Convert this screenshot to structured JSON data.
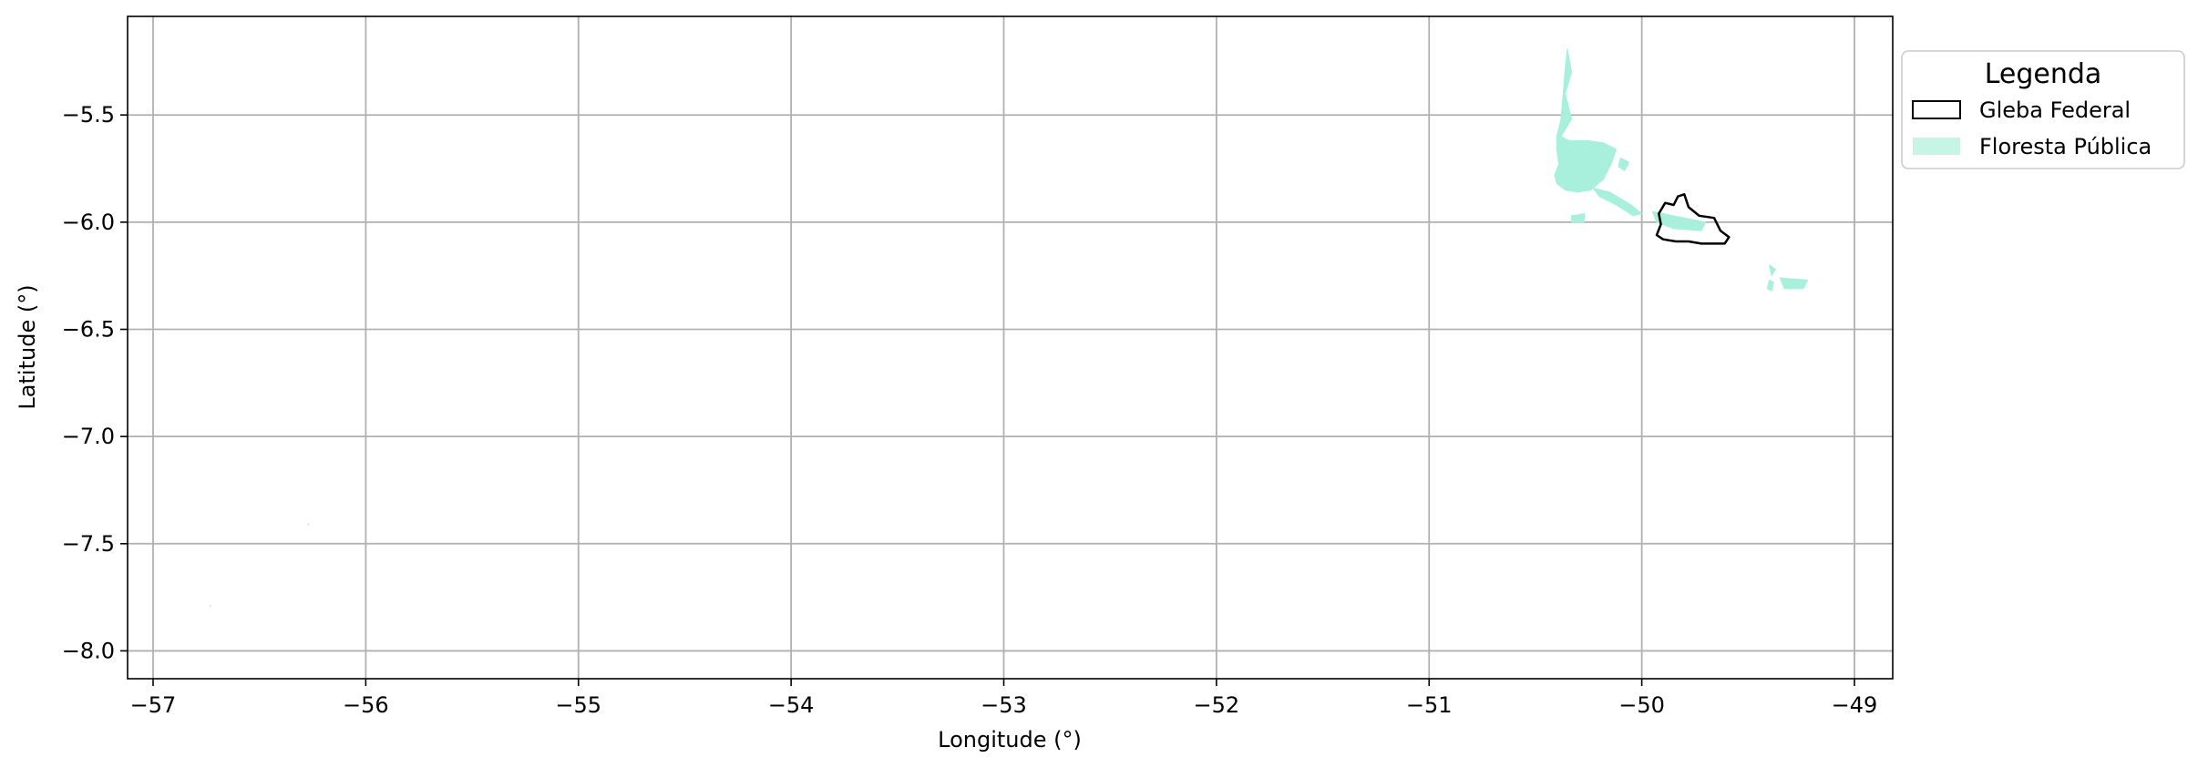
{
  "chart_data": {
    "type": "map",
    "xlabel": "Longitude (°)",
    "ylabel": "Latitude (°)",
    "xlim": [
      -57.12,
      -48.82
    ],
    "ylim": [
      -8.13,
      -5.04
    ],
    "xticks": [
      -57,
      -56,
      -55,
      -54,
      -53,
      -52,
      -51,
      -50,
      -49
    ],
    "xtick_labels": [
      "−57",
      "−56",
      "−55",
      "−54",
      "−53",
      "−52",
      "−51",
      "−50",
      "−49"
    ],
    "yticks": [
      -5.5,
      -6.0,
      -6.5,
      -7.0,
      -7.5,
      -8.0
    ],
    "ytick_labels": [
      "−5.5",
      "−6.0",
      "−6.5",
      "−7.0",
      "−7.5",
      "−8.0"
    ],
    "grid": true,
    "legend": {
      "title": "Legenda",
      "placement": "outside-upper-right",
      "items": [
        {
          "label": "Gleba Federal",
          "style": "outline",
          "edge_color": "#000000"
        },
        {
          "label": "Floresta Pública",
          "style": "fill",
          "fill_color": "#c6f5e6"
        }
      ]
    },
    "layers": [
      {
        "name": "Floresta Pública",
        "fill_color": "#a8f0dc",
        "polygons": [
          [
            [
              -50.35,
              -5.19
            ],
            [
              -50.33,
              -5.3
            ],
            [
              -50.36,
              -5.4
            ],
            [
              -50.33,
              -5.52
            ],
            [
              -50.38,
              -5.6
            ],
            [
              -50.34,
              -5.62
            ],
            [
              -50.25,
              -5.62
            ],
            [
              -50.18,
              -5.63
            ],
            [
              -50.12,
              -5.66
            ],
            [
              -50.14,
              -5.72
            ],
            [
              -50.18,
              -5.8
            ],
            [
              -50.24,
              -5.85
            ],
            [
              -50.3,
              -5.86
            ],
            [
              -50.36,
              -5.85
            ],
            [
              -50.4,
              -5.82
            ],
            [
              -50.41,
              -5.78
            ],
            [
              -50.39,
              -5.73
            ],
            [
              -50.4,
              -5.66
            ],
            [
              -50.4,
              -5.6
            ],
            [
              -50.38,
              -5.52
            ],
            [
              -50.37,
              -5.4
            ],
            [
              -50.36,
              -5.28
            ]
          ],
          [
            [
              -50.23,
              -5.84
            ],
            [
              -50.15,
              -5.86
            ],
            [
              -50.05,
              -5.92
            ],
            [
              -50.0,
              -5.96
            ],
            [
              -50.04,
              -5.97
            ],
            [
              -50.12,
              -5.92
            ],
            [
              -50.2,
              -5.88
            ]
          ],
          [
            [
              -50.33,
              -5.97
            ],
            [
              -50.27,
              -5.96
            ],
            [
              -50.27,
              -6.0
            ],
            [
              -50.33,
              -6.0
            ]
          ],
          [
            [
              -49.95,
              -5.95
            ],
            [
              -49.8,
              -5.98
            ],
            [
              -49.7,
              -6.0
            ],
            [
              -49.72,
              -6.04
            ],
            [
              -49.85,
              -6.03
            ],
            [
              -49.93,
              -6.0
            ]
          ],
          [
            [
              -50.1,
              -5.7
            ],
            [
              -50.06,
              -5.72
            ],
            [
              -50.08,
              -5.76
            ],
            [
              -50.11,
              -5.74
            ]
          ],
          [
            [
              -49.4,
              -6.2
            ],
            [
              -49.37,
              -6.22
            ],
            [
              -49.39,
              -6.25
            ]
          ],
          [
            [
              -49.35,
              -6.26
            ],
            [
              -49.22,
              -6.27
            ],
            [
              -49.24,
              -6.31
            ],
            [
              -49.33,
              -6.31
            ]
          ],
          [
            [
              -49.4,
              -6.27
            ],
            [
              -49.38,
              -6.28
            ],
            [
              -49.39,
              -6.32
            ],
            [
              -49.41,
              -6.31
            ]
          ]
        ]
      },
      {
        "name": "Gleba Federal",
        "edge_color": "#000000",
        "polygons": [
          [
            [
              -49.89,
              -5.91
            ],
            [
              -49.85,
              -5.92
            ],
            [
              -49.83,
              -5.88
            ],
            [
              -49.8,
              -5.87
            ],
            [
              -49.78,
              -5.93
            ],
            [
              -49.73,
              -5.97
            ],
            [
              -49.66,
              -5.98
            ],
            [
              -49.63,
              -6.04
            ],
            [
              -49.59,
              -6.07
            ],
            [
              -49.61,
              -6.1
            ],
            [
              -49.67,
              -6.1
            ],
            [
              -49.72,
              -6.1
            ],
            [
              -49.78,
              -6.09
            ],
            [
              -49.84,
              -6.09
            ],
            [
              -49.9,
              -6.08
            ],
            [
              -49.93,
              -6.06
            ],
            [
              -49.91,
              -6.01
            ],
            [
              -49.92,
              -5.96
            ]
          ]
        ]
      }
    ],
    "specks": [
      {
        "name": "Floresta Pública",
        "points": [
          [
            -56.27,
            -7.41
          ],
          [
            -56.73,
            -7.79
          ]
        ]
      }
    ]
  }
}
